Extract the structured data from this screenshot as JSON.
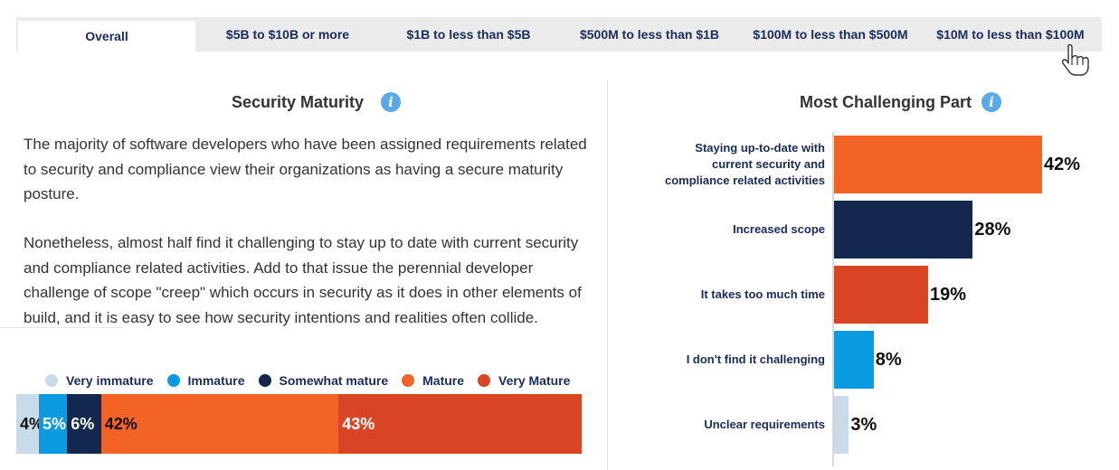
{
  "tabs": [
    {
      "label": "Overall",
      "active": true
    },
    {
      "label": "$5B to $10B or more",
      "active": false
    },
    {
      "label": "$1B to less than $5B",
      "active": false
    },
    {
      "label": "$500M to less than $1B",
      "active": false
    },
    {
      "label": "$100M to less than $500M",
      "active": false
    },
    {
      "label": "$10M to less than $100M",
      "active": false
    }
  ],
  "left": {
    "title": "Security Maturity",
    "paragraph1": "The majority of software developers who have been assigned requirements related to security and compliance view their organizations as having a secure maturity posture.",
    "paragraph2": "Nonetheless, almost half find it challenging to stay up to date with current security and compliance related activities. Add to that issue the perennial developer challenge of scope \"creep\" which occurs in security as it does in other elements of build, and it is easy to see how security intentions and realities often collide."
  },
  "right": {
    "title": "Most Challenging Part"
  },
  "colors": {
    "very_immature": "#c9dbe9",
    "immature": "#0a9be0",
    "somewhat_mature": "#13274f",
    "mature": "#f26325",
    "very_mature": "#d84424"
  },
  "icons": [
    "info-icon",
    "hand-pointer-icon"
  ],
  "chart_data": [
    {
      "type": "bar",
      "stacked": true,
      "orientation": "horizontal",
      "title": "Security Maturity",
      "series": [
        {
          "name": "Very immature",
          "value": 4,
          "label": "4%",
          "color": "#c9dbe9",
          "label_color": "#111111"
        },
        {
          "name": "Immature",
          "value": 5,
          "label": "5%",
          "color": "#0a9be0",
          "label_color": "#ffffff"
        },
        {
          "name": "Somewhat mature",
          "value": 6,
          "label": "6%",
          "color": "#13274f",
          "label_color": "#ffffff"
        },
        {
          "name": "Mature",
          "value": 42,
          "label": "42%",
          "color": "#f26325",
          "label_color": "#111111"
        },
        {
          "name": "Very Mature",
          "value": 43,
          "label": "43%",
          "color": "#d84424",
          "label_color": "#ffffff"
        }
      ],
      "legend": "top"
    },
    {
      "type": "bar",
      "orientation": "horizontal",
      "title": "Most Challenging Part",
      "xlim": [
        0,
        42
      ],
      "categories": [
        "Staying up-to-date with current security and compliance related activities",
        "Increased scope",
        "It takes too much time",
        "I don't find it challenging",
        "Unclear requirements"
      ],
      "category_lines": [
        [
          "Staying up-to-date with",
          "current security and",
          "compliance related activities"
        ],
        [
          "Increased scope"
        ],
        [
          "It takes too much time"
        ],
        [
          "I don't find it challenging"
        ],
        [
          "Unclear requirements"
        ]
      ],
      "values": [
        42,
        28,
        19,
        8,
        3
      ],
      "value_labels": [
        "42%",
        "28%",
        "19%",
        "8%",
        "3%"
      ],
      "colors": [
        "#f26325",
        "#13274f",
        "#d84424",
        "#0a9be0",
        "#c9dbe9"
      ]
    }
  ]
}
